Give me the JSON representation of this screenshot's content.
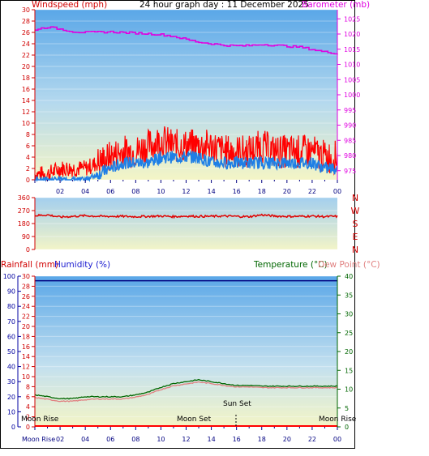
{
  "header": {
    "title": "24 hour graph day : 11 December 2025",
    "left_label": "Windspeed (mph)",
    "right_label": "Barometer (mb)"
  },
  "x_axis": {
    "tick_labels": [
      "02",
      "04",
      "06",
      "08",
      "10",
      "12",
      "14",
      "16",
      "18",
      "20",
      "22",
      "00"
    ],
    "moon_rise_left": "Moon Rise"
  },
  "panel_wind": {
    "left_ticks": [
      "30",
      "28",
      "26",
      "24",
      "22",
      "20",
      "18",
      "16",
      "14",
      "12",
      "10",
      "8",
      "6",
      "4",
      "2",
      "0"
    ],
    "right_ticks": [
      "1025",
      "1020",
      "1015",
      "1010",
      "1005",
      "1000",
      "995",
      "990",
      "985",
      "980",
      "975"
    ]
  },
  "panel_direction": {
    "left_ticks": [
      "360",
      "270",
      "180",
      "90",
      "0"
    ],
    "compass": [
      "N",
      "W",
      "S",
      "E",
      "N"
    ]
  },
  "panel_temp": {
    "rain_label": "Rainfall (mm)",
    "humidity_label": "Humidity (%)",
    "temperature_label": "Temperature (°C)",
    "dewpoint_label": "Dew Point (°C)",
    "humidity_ticks": [
      "100",
      "90",
      "80",
      "70",
      "60",
      "50",
      "40",
      "30",
      "20",
      "10",
      "0"
    ],
    "rain_ticks": [
      "30",
      "28",
      "26",
      "24",
      "22",
      "20",
      "18",
      "16",
      "14",
      "12",
      "10",
      "8",
      "6",
      "4",
      "2",
      "0"
    ],
    "temp_ticks": [
      "40",
      "35",
      "30",
      "25",
      "20",
      "15",
      "10",
      "5",
      "0"
    ],
    "annotations": {
      "moon_rise_left": "Moon Rise",
      "moon_set": "Moon Set",
      "sun_set": "Sun Set",
      "moon_rise_right": "Moon Rise"
    }
  },
  "colors": {
    "wind_gust": "#ff0000",
    "wind_avg": "#1e7fe6",
    "barometer": "#e000e0",
    "direction": "#e00000",
    "temperature": "#006600",
    "dewpoint": "#e08080",
    "humidity": "#000080",
    "rain": "#ff0000"
  },
  "chart_data": [
    {
      "type": "line",
      "title": "24 hour graph day : 11 December 2025",
      "xlabel": "",
      "ylabel": "Windspeed (mph)",
      "y2label": "Barometer (mb)",
      "x_range_hours": [
        0,
        24
      ],
      "ylim": [
        0,
        30
      ],
      "y2lim": [
        972,
        1028
      ],
      "series": [
        {
          "name": "",
          "axis": "left",
          "x": [
            0,
            1,
            2,
            3,
            4,
            5,
            6,
            7,
            8,
            9,
            10,
            11,
            12,
            13,
            14,
            15,
            16,
            17,
            18,
            19,
            20,
            21,
            22,
            23,
            24
          ],
          "values": [
            1,
            1,
            2,
            2,
            2,
            3,
            4,
            5,
            5,
            6,
            7,
            6,
            6,
            6,
            6,
            5,
            5,
            5,
            6,
            5,
            5,
            5,
            5,
            4,
            4
          ]
        },
        {
          "name": "",
          "axis": "left",
          "x": [
            0,
            1,
            2,
            3,
            4,
            5,
            6,
            7,
            8,
            9,
            10,
            11,
            12,
            13,
            14,
            15,
            16,
            17,
            18,
            19,
            20,
            21,
            22,
            23,
            24
          ],
          "values": [
            0,
            0,
            0,
            0,
            0,
            1,
            2,
            3,
            3,
            3,
            4,
            4,
            4,
            4,
            3,
            3,
            3,
            3,
            3,
            3,
            3,
            3,
            3,
            2,
            2
          ]
        },
        {
          "name": "",
          "axis": "right",
          "x": [
            0,
            1,
            2,
            3,
            4,
            5,
            6,
            7,
            8,
            9,
            10,
            11,
            12,
            13,
            14,
            15,
            16,
            17,
            18,
            19,
            20,
            21,
            22,
            23,
            24
          ],
          "values": [
            1021.5,
            1022.3,
            1021.6,
            1020.8,
            1020.5,
            1020.6,
            1020.7,
            1020.5,
            1020.3,
            1020.1,
            1019.8,
            1019.2,
            1018.2,
            1017.3,
            1016.8,
            1016.3,
            1016.1,
            1016.2,
            1016.6,
            1016.3,
            1016.0,
            1015.7,
            1014.9,
            1014.1,
            1013.6
          ]
        }
      ]
    },
    {
      "type": "line",
      "ylabel": "",
      "ylim": [
        0,
        360
      ],
      "series": [
        {
          "name": "",
          "x": [
            0,
            1,
            2,
            3,
            4,
            5,
            6,
            7,
            8,
            9,
            10,
            11,
            12,
            13,
            14,
            15,
            16,
            17,
            18,
            19,
            20,
            21,
            22,
            23,
            24
          ],
          "values": [
            235,
            240,
            225,
            230,
            235,
            230,
            230,
            230,
            228,
            230,
            232,
            228,
            232,
            230,
            230,
            232,
            230,
            228,
            240,
            232,
            230,
            230,
            232,
            228,
            230
          ]
        }
      ]
    },
    {
      "type": "line",
      "ylabel": "Rainfall (mm)",
      "y2label": "Temperature (°C)",
      "ylim_humidity": [
        0,
        100
      ],
      "ylim_rain": [
        0,
        30
      ],
      "ylim_temp": [
        0,
        40
      ],
      "series": [
        {
          "name": "Temperature (°C)",
          "axis": "temp",
          "x": [
            0,
            1,
            2,
            3,
            4,
            5,
            6,
            7,
            8,
            9,
            10,
            11,
            12,
            13,
            14,
            15,
            16,
            17,
            18,
            19,
            20,
            21,
            22,
            23,
            24
          ],
          "values": [
            8.5,
            8,
            7.5,
            7.5,
            8,
            8,
            8,
            8,
            8.5,
            9.2,
            10.5,
            11.5,
            12,
            12.5,
            12,
            11.5,
            11,
            11,
            10.8,
            10.8,
            10.8,
            10.8,
            10.8,
            10.8,
            10.8
          ]
        },
        {
          "name": "Dew Point (°C)",
          "axis": "temp",
          "x": [
            0,
            1,
            2,
            3,
            4,
            5,
            6,
            7,
            8,
            9,
            10,
            11,
            12,
            13,
            14,
            15,
            16,
            17,
            18,
            19,
            20,
            21,
            22,
            23,
            24
          ],
          "values": [
            7.8,
            7.3,
            6.8,
            6.8,
            7.2,
            7.4,
            7.4,
            7.4,
            7.9,
            8.6,
            9.9,
            10.9,
            11.4,
            11.9,
            11.5,
            11,
            10.6,
            10.6,
            10.4,
            10.4,
            10.4,
            10.4,
            10.4,
            10.4,
            10.4
          ]
        },
        {
          "name": "Humidity (%)",
          "axis": "humidity",
          "x": [
            0,
            24
          ],
          "values": [
            97,
            97
          ]
        },
        {
          "name": "Rainfall (mm)",
          "axis": "rain",
          "x": [
            0,
            24
          ],
          "values": [
            0,
            0
          ]
        }
      ]
    }
  ]
}
